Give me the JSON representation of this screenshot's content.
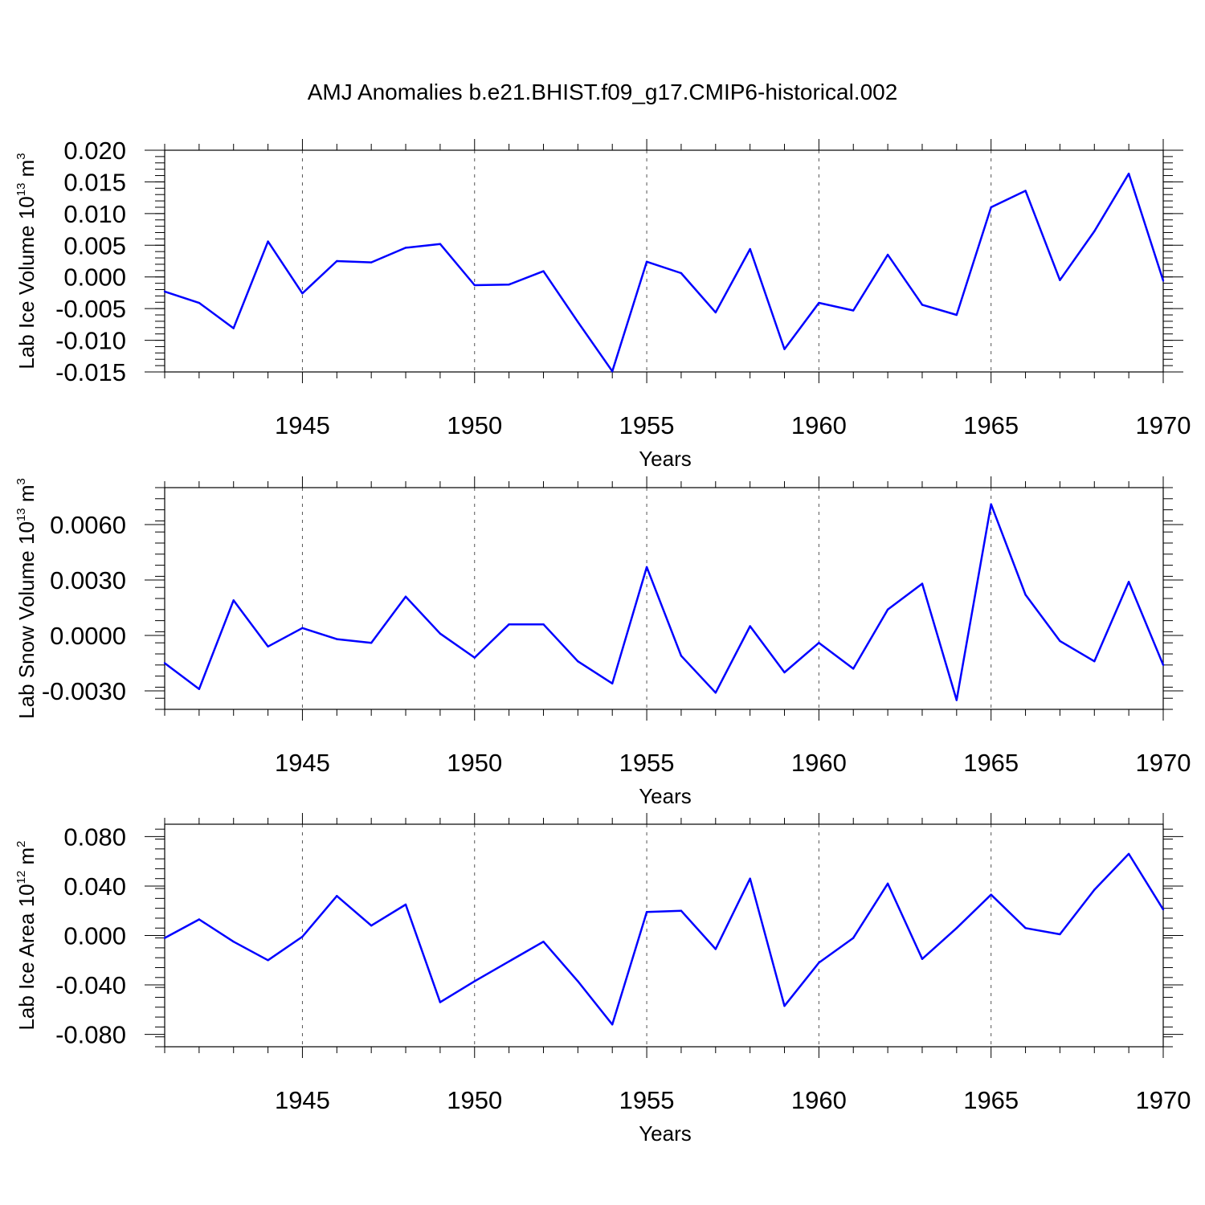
{
  "title": "AMJ Anomalies b.e21.BHIST.f09_g17.CMIP6-historical.002",
  "colors": {
    "line": "#0000ff",
    "grid": "#555555"
  },
  "chart_data": [
    {
      "type": "line",
      "ylabel": {
        "prefix": "Lab Ice Volume 10",
        "exp": "13",
        "unit": " m",
        "unit_exp": "3"
      },
      "xlabel": "Years",
      "xlim": [
        1941,
        1970
      ],
      "ylim": [
        -0.015,
        0.02
      ],
      "xticks": [
        1945,
        1950,
        1955,
        1960,
        1965,
        1970
      ],
      "xtick_labels": [
        "1945",
        "1950",
        "1955",
        "1960",
        "1965",
        "1970"
      ],
      "yticks": [
        -0.015,
        -0.01,
        -0.005,
        0.0,
        0.005,
        0.01,
        0.015,
        0.02
      ],
      "ytick_labels": [
        "-0.015",
        "-0.010",
        "-0.005",
        "0.000",
        "0.005",
        "0.010",
        "0.015",
        "0.020"
      ],
      "grid": "vertical-dashed",
      "series": [
        {
          "x": [
            1941,
            1942,
            1943,
            1944,
            1945,
            1946,
            1947,
            1948,
            1949,
            1950,
            1951,
            1952,
            1953,
            1954,
            1955,
            1956,
            1957,
            1958,
            1959,
            1960,
            1961,
            1962,
            1963,
            1964,
            1965,
            1966,
            1967,
            1968,
            1969,
            1970
          ],
          "values": [
            -0.0023,
            -0.0041,
            -0.0081,
            0.0056,
            -0.0026,
            0.0025,
            0.0023,
            0.0046,
            0.0052,
            -0.0013,
            -0.0012,
            0.0009,
            -0.0071,
            -0.0149,
            0.0024,
            0.0006,
            -0.0056,
            0.0044,
            -0.0114,
            -0.0041,
            -0.0053,
            0.0035,
            -0.0044,
            -0.006,
            0.011,
            0.0136,
            -0.0005,
            0.0072,
            0.0163,
            -0.0006
          ]
        }
      ]
    },
    {
      "type": "line",
      "ylabel": {
        "prefix": "Lab Snow Volume 10",
        "exp": "13",
        "unit": " m",
        "unit_exp": "3"
      },
      "xlabel": "Years",
      "xlim": [
        1941,
        1970
      ],
      "ylim": [
        -0.004,
        0.008
      ],
      "xticks": [
        1945,
        1950,
        1955,
        1960,
        1965,
        1970
      ],
      "xtick_labels": [
        "1945",
        "1950",
        "1955",
        "1960",
        "1965",
        "1970"
      ],
      "yticks": [
        -0.003,
        0.0,
        0.003,
        0.006
      ],
      "ytick_labels": [
        "-0.0030",
        "0.0000",
        "0.0030",
        "0.0060"
      ],
      "grid": "vertical-dashed",
      "series": [
        {
          "x": [
            1941,
            1942,
            1943,
            1944,
            1945,
            1946,
            1947,
            1948,
            1949,
            1950,
            1951,
            1952,
            1953,
            1954,
            1955,
            1956,
            1957,
            1958,
            1959,
            1960,
            1961,
            1962,
            1963,
            1964,
            1965,
            1966,
            1967,
            1968,
            1969,
            1970
          ],
          "values": [
            -0.0015,
            -0.0029,
            0.0019,
            -0.0006,
            0.0004,
            -0.0002,
            -0.0004,
            0.0021,
            0.0001,
            -0.0012,
            0.0006,
            0.0006,
            -0.0014,
            -0.0026,
            0.0037,
            -0.0011,
            -0.0031,
            0.0005,
            -0.002,
            -0.0004,
            -0.0018,
            0.0014,
            0.0028,
            -0.0035,
            0.0071,
            0.0022,
            -0.0003,
            -0.0014,
            0.0029,
            -0.0016
          ]
        }
      ]
    },
    {
      "type": "line",
      "ylabel": {
        "prefix": "Lab Ice Area 10",
        "exp": "12",
        "unit": " m",
        "unit_exp": "2"
      },
      "xlabel": "Years",
      "xlim": [
        1941,
        1970
      ],
      "ylim": [
        -0.09,
        0.09
      ],
      "xticks": [
        1945,
        1950,
        1955,
        1960,
        1965,
        1970
      ],
      "xtick_labels": [
        "1945",
        "1950",
        "1955",
        "1960",
        "1965",
        "1970"
      ],
      "yticks": [
        -0.08,
        -0.04,
        0.0,
        0.04,
        0.08
      ],
      "ytick_labels": [
        "-0.080",
        "-0.040",
        "0.000",
        "0.040",
        "0.080"
      ],
      "grid": "vertical-dashed",
      "series": [
        {
          "x": [
            1941,
            1942,
            1943,
            1944,
            1945,
            1946,
            1947,
            1948,
            1949,
            1950,
            1951,
            1952,
            1953,
            1954,
            1955,
            1956,
            1957,
            1958,
            1959,
            1960,
            1961,
            1962,
            1963,
            1964,
            1965,
            1966,
            1967,
            1968,
            1969,
            1970
          ],
          "values": [
            -0.002,
            0.013,
            -0.005,
            -0.02,
            -0.001,
            0.032,
            0.008,
            0.025,
            -0.054,
            -0.037,
            -0.021,
            -0.005,
            -0.037,
            -0.072,
            0.019,
            0.02,
            -0.011,
            0.046,
            -0.057,
            -0.022,
            -0.002,
            0.042,
            -0.019,
            0.006,
            0.033,
            0.006,
            0.001,
            0.037,
            0.066,
            0.021
          ]
        }
      ]
    }
  ]
}
